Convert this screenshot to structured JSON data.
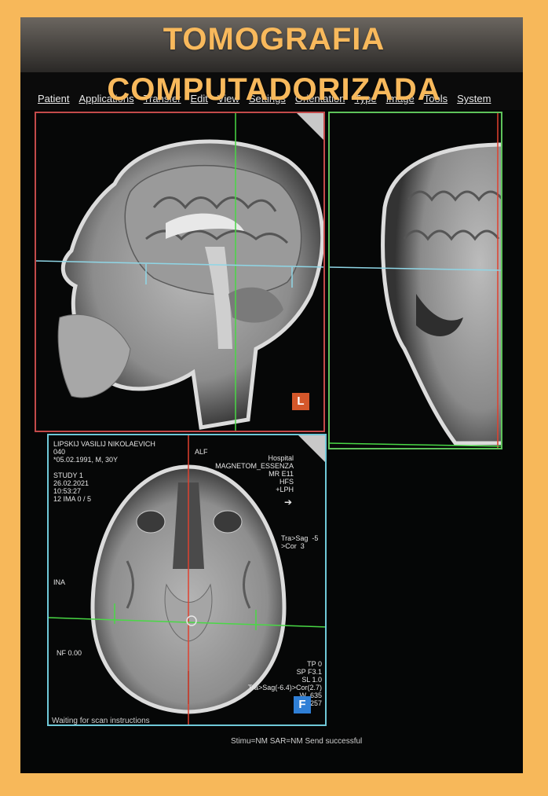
{
  "banner": {
    "line1": "TOMOGRAFIA",
    "line2": "COMPUTADORIZADA",
    "color": "#f8b95c",
    "frame_color": "#f7b85a"
  },
  "menu": [
    "Patient",
    "Applications",
    "Transfer",
    "Edit",
    "View",
    "Settings",
    "Orientation",
    "Type",
    "Image",
    "Tools",
    "System"
  ],
  "viewer": {
    "sagittal_badge": "L",
    "axial_badge": "F",
    "axial_info_left": "LIPSKIJ VASILIJ NIKOLAEVICH\n040\n*05.02.1991, M, 30Y\n\nSTUDY 1\n26.02.2021\n10:53:27\n12 IMA 0 / 5",
    "axial_info_center": "ALF",
    "axial_info_right": "Hospital\nMAGNETOM_ESSENZA\nMR E11\nHFS\n+LPH",
    "axial_arrow": "➔",
    "axial_orient": "Tra>Sag  -5\n>Cor  3",
    "axial_left_mid": "INA",
    "axial_left_low": "NF 0.00",
    "axial_params": "TP 0\nSP F3.1\nSL 1.0\nTra>Sag(-6.4)>Cor(2.7)\nW  635\nC  257",
    "status_left": "Waiting for scan instructions",
    "status_right": "Stimu=NM SAR=NM Send successful"
  },
  "colors": {
    "sagittal_border": "#c34a4a",
    "coronal_border": "#5ec25a",
    "axial_border": "#6fc8d8",
    "crosshair_green": "#49d845",
    "crosshair_red": "#e0412f",
    "crosshair_cyan": "#8fd6e6"
  }
}
